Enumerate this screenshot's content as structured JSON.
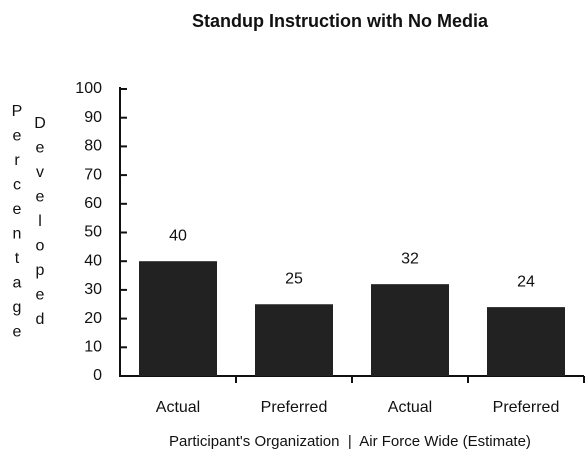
{
  "chart_data": {
    "type": "bar",
    "title": "Standup Instruction with No Media",
    "ylabel_lines": [
      "Percentage",
      "Developed"
    ],
    "xlabel": "Participant's Organization  |  Air Force Wide (Estimate)",
    "categories": [
      "Actual",
      "Preferred",
      "Actual",
      "Preferred"
    ],
    "values": [
      40,
      25,
      32,
      24
    ],
    "color": "#222222",
    "ylim": [
      0,
      100
    ],
    "yticks": [
      0,
      10,
      20,
      30,
      40,
      50,
      60,
      70,
      80,
      90,
      100
    ],
    "grid": false
  }
}
